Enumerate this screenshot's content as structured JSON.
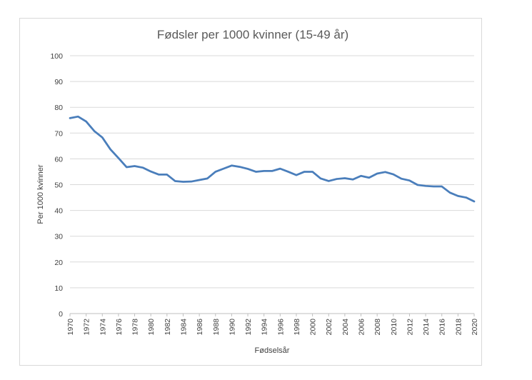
{
  "chart_data": {
    "type": "line",
    "title": "Fødsler per 1000 kvinner (15-49 år)",
    "xlabel": "Fødselsår",
    "ylabel": "Per 1000 kvinner",
    "ylim": [
      0,
      100
    ],
    "yticks": [
      0,
      10,
      20,
      30,
      40,
      50,
      60,
      70,
      80,
      90,
      100
    ],
    "xlim": [
      1970,
      2020
    ],
    "xticks": [
      1970,
      1972,
      1974,
      1976,
      1978,
      1980,
      1982,
      1984,
      1986,
      1988,
      1990,
      1992,
      1994,
      1996,
      1998,
      2000,
      2002,
      2004,
      2006,
      2008,
      2010,
      2012,
      2014,
      2016,
      2018,
      2020
    ],
    "grid": true,
    "color": "#4a7ebb",
    "series": [
      {
        "x": [
          1970,
          1971,
          1972,
          1973,
          1974,
          1975,
          1976,
          1977,
          1978,
          1979,
          1980,
          1981,
          1982,
          1983,
          1984,
          1985,
          1986,
          1987,
          1988,
          1989,
          1990,
          1991,
          1992,
          1993,
          1994,
          1995,
          1996,
          1997,
          1998,
          1999,
          2000,
          2001,
          2002,
          2003,
          2004,
          2005,
          2006,
          2007,
          2008,
          2009,
          2010,
          2011,
          2012,
          2013,
          2014,
          2015,
          2016,
          2017,
          2018,
          2019,
          2020
        ],
        "values": [
          75.8,
          76.4,
          74.5,
          70.8,
          68.3,
          63.7,
          60.3,
          56.8,
          57.2,
          56.6,
          55.1,
          53.9,
          53.9,
          51.4,
          51.1,
          51.2,
          51.8,
          52.4,
          55.0,
          56.2,
          57.4,
          56.9,
          56.1,
          55.0,
          55.3,
          55.3,
          56.2,
          55.0,
          53.7,
          55.0,
          55.0,
          52.4,
          51.4,
          52.2,
          52.5,
          52.0,
          53.4,
          52.7,
          54.3,
          54.9,
          54.0,
          52.3,
          51.6,
          49.9,
          49.5,
          49.3,
          49.3,
          46.9,
          45.6,
          45.0,
          43.5
        ]
      }
    ]
  }
}
